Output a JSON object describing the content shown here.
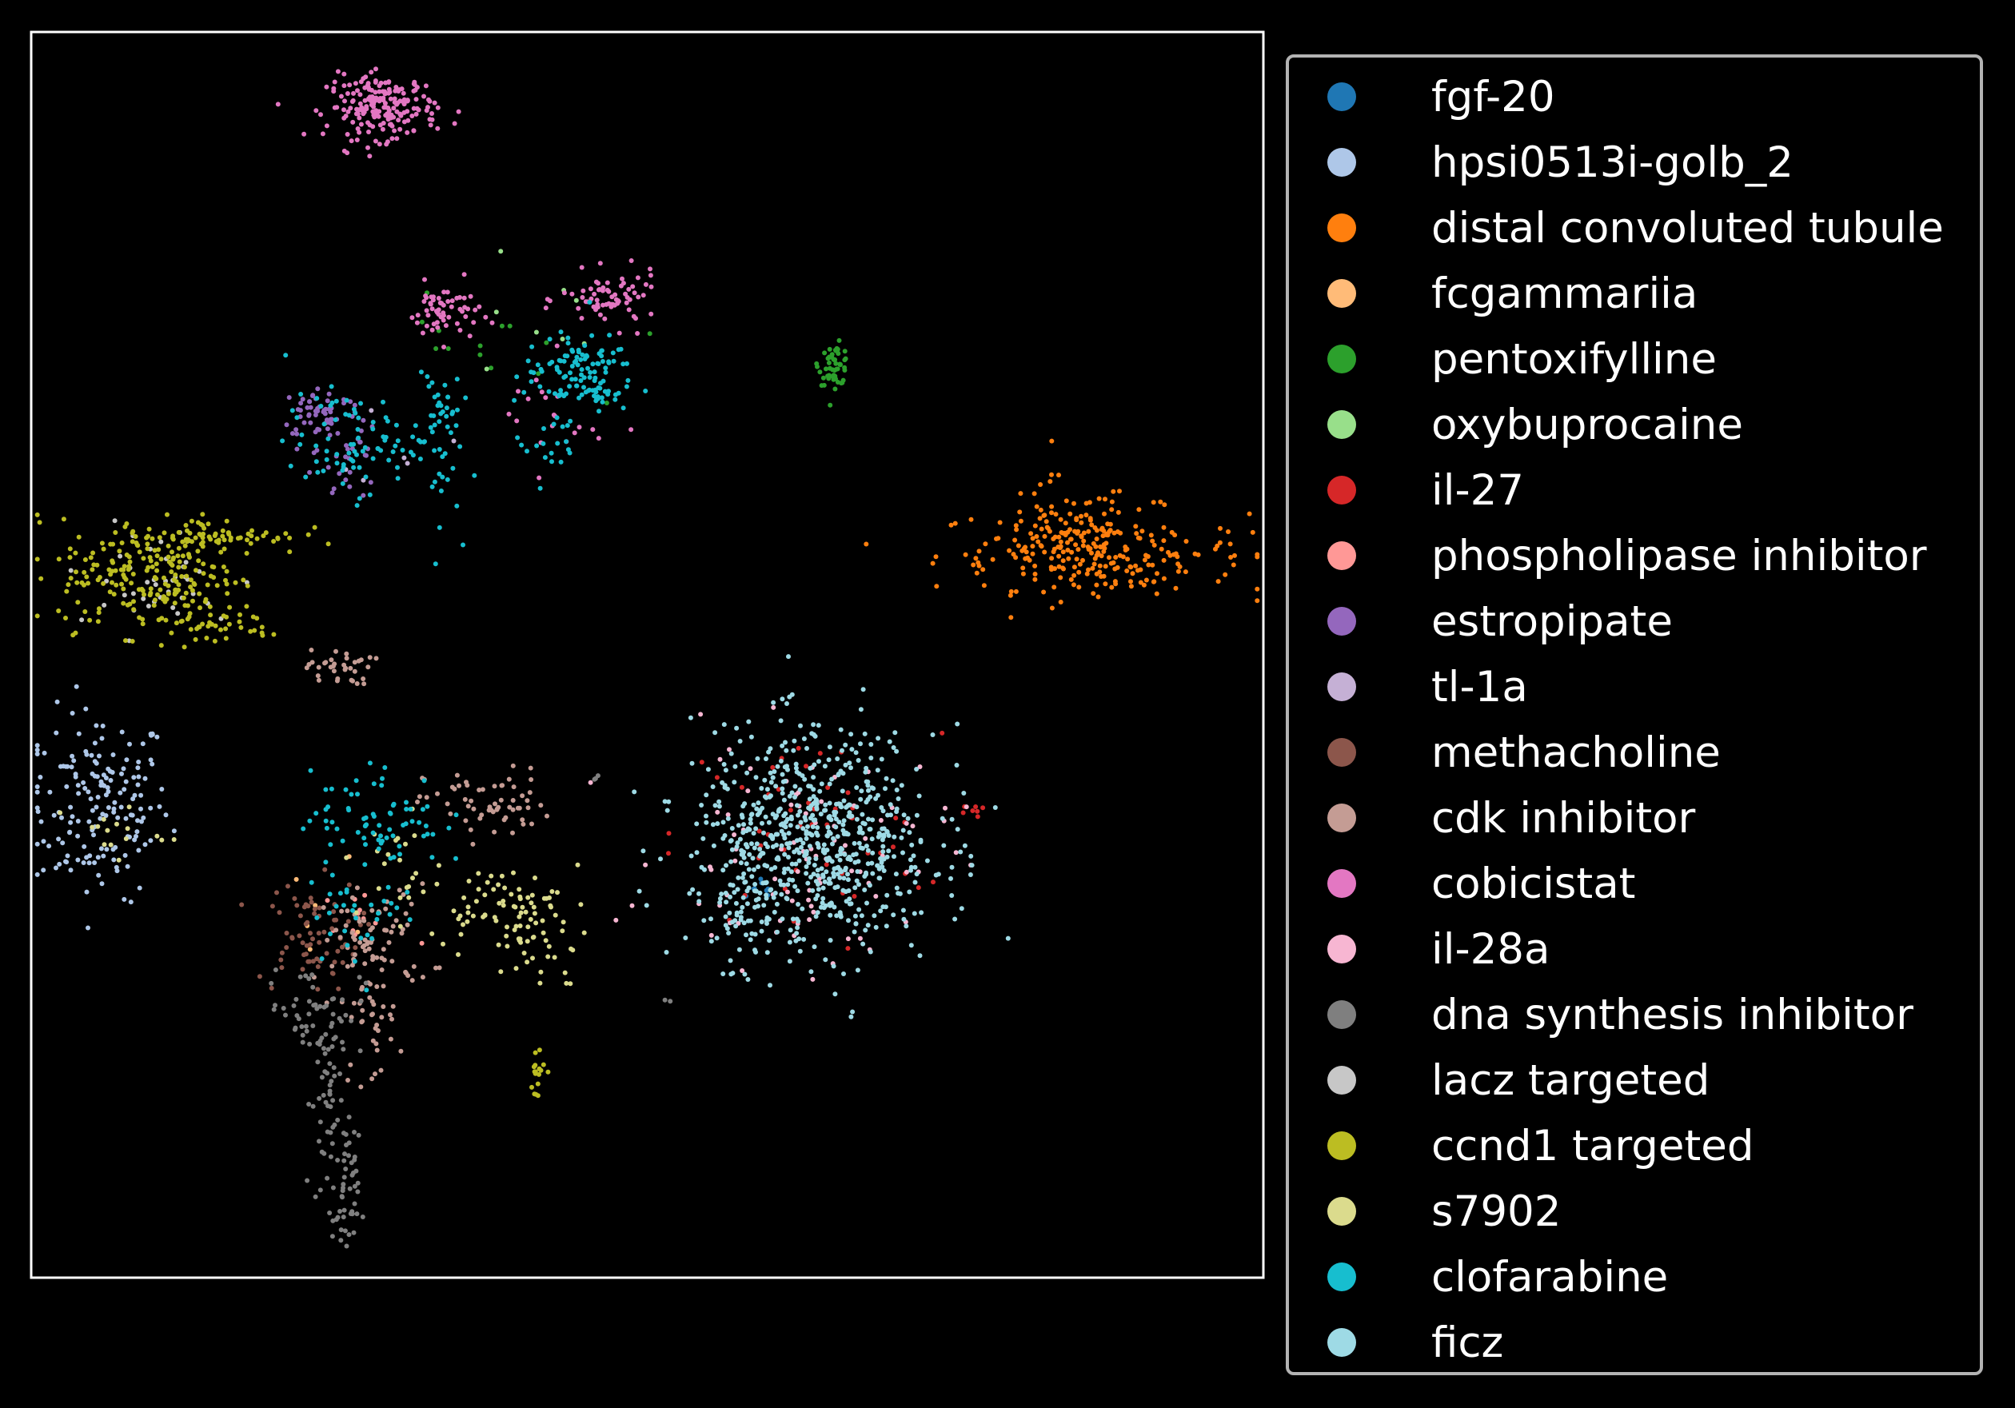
{
  "chart_data": {
    "type": "scatter",
    "title": "",
    "xlabel": "",
    "ylabel": "",
    "axes_visible": false,
    "background": "#000000",
    "frame_color": "#ffffff",
    "legend_position": "right",
    "xlim": [
      0,
      100
    ],
    "ylim": [
      0,
      100
    ],
    "series": [
      {
        "name": "fgf-20",
        "color": "#1f77b4",
        "clusters": [
          {
            "cx": 59.5,
            "cy": 31,
            "rx": 0.8,
            "ry": 0.8,
            "n": 8
          }
        ]
      },
      {
        "name": "hpsi0513i-golb_2",
        "color": "#aec7e8",
        "clusters": [
          {
            "cx": 5.5,
            "cy": 38,
            "rx": 3.2,
            "ry": 4.2,
            "n": 170
          }
        ]
      },
      {
        "name": "distal convoluted tubule",
        "color": "#ff7f0e",
        "clusters": [
          {
            "cx": 86,
            "cy": 58.5,
            "rx": 7,
            "ry": 1.8,
            "n": 160
          },
          {
            "cx": 84,
            "cy": 59.5,
            "rx": 3,
            "ry": 2.6,
            "n": 90
          },
          {
            "cx": 90,
            "cy": 56.5,
            "rx": 3.5,
            "ry": 1.2,
            "n": 40
          }
        ]
      },
      {
        "name": "fcgammariia",
        "color": "#ffbb78",
        "clusters": [
          {
            "cx": 24,
            "cy": 29.5,
            "rx": 1.8,
            "ry": 2.5,
            "n": 6
          }
        ]
      },
      {
        "name": "pentoxifylline",
        "color": "#2ca02c",
        "clusters": [
          {
            "cx": 65.2,
            "cy": 73.3,
            "rx": 0.7,
            "ry": 0.9,
            "n": 55
          },
          {
            "cx": 36,
            "cy": 74,
            "rx": 5,
            "ry": 2.5,
            "n": 14
          }
        ]
      },
      {
        "name": "oxybuprocaine",
        "color": "#98df8a",
        "clusters": [
          {
            "cx": 40,
            "cy": 77,
            "rx": 4,
            "ry": 4,
            "n": 8
          }
        ]
      },
      {
        "name": "il-27",
        "color": "#d62728",
        "clusters": [
          {
            "cx": 63,
            "cy": 35.5,
            "rx": 6,
            "ry": 4.5,
            "n": 50
          },
          {
            "cx": 76.5,
            "cy": 37.5,
            "rx": 0.5,
            "ry": 0.3,
            "n": 6
          }
        ]
      },
      {
        "name": "phospholipase inhibitor",
        "color": "#ff9896",
        "clusters": [
          {
            "cx": 27,
            "cy": 28,
            "rx": 3,
            "ry": 3,
            "n": 12
          }
        ]
      },
      {
        "name": "estropipate",
        "color": "#9467bd",
        "clusters": [
          {
            "cx": 23.5,
            "cy": 69.5,
            "rx": 1.8,
            "ry": 1.2,
            "n": 55
          },
          {
            "cx": 25.5,
            "cy": 66,
            "rx": 1.5,
            "ry": 2.5,
            "n": 30
          }
        ]
      },
      {
        "name": "tl-1a",
        "color": "#c5b0d5",
        "clusters": [
          {
            "cx": 30,
            "cy": 67,
            "rx": 2,
            "ry": 2,
            "n": 6
          }
        ]
      },
      {
        "name": "methacholine",
        "color": "#8c564b",
        "clusters": [
          {
            "cx": 22.5,
            "cy": 27.5,
            "rx": 2.3,
            "ry": 2.5,
            "n": 70
          }
        ]
      },
      {
        "name": "cdk inhibitor",
        "color": "#c49c94",
        "clusters": [
          {
            "cx": 25,
            "cy": 49,
            "rx": 1.5,
            "ry": 0.8,
            "n": 35
          },
          {
            "cx": 37,
            "cy": 38,
            "rx": 2.8,
            "ry": 1.6,
            "n": 60
          },
          {
            "cx": 28,
            "cy": 27,
            "rx": 2.5,
            "ry": 2.5,
            "n": 70
          },
          {
            "cx": 27.5,
            "cy": 21,
            "rx": 1.3,
            "ry": 3,
            "n": 40
          }
        ]
      },
      {
        "name": "cobicistat",
        "color": "#e377c2",
        "clusters": [
          {
            "cx": 28.5,
            "cy": 94,
            "rx": 2.5,
            "ry": 1.4,
            "n": 200
          },
          {
            "cx": 33.5,
            "cy": 77.5,
            "rx": 1.6,
            "ry": 1.3,
            "n": 60
          },
          {
            "cx": 47,
            "cy": 78.5,
            "rx": 2.2,
            "ry": 1.2,
            "n": 70
          },
          {
            "cx": 42,
            "cy": 69,
            "rx": 2.5,
            "ry": 2.5,
            "n": 20
          }
        ]
      },
      {
        "name": "il-28a",
        "color": "#f7b6d2",
        "clusters": [
          {
            "cx": 63,
            "cy": 34,
            "rx": 6.5,
            "ry": 5,
            "n": 90
          }
        ]
      },
      {
        "name": "dna synthesis inhibitor",
        "color": "#7f7f7f",
        "clusters": [
          {
            "cx": 23,
            "cy": 21.5,
            "rx": 2.2,
            "ry": 2,
            "n": 50
          },
          {
            "cx": 24,
            "cy": 14,
            "rx": 0.7,
            "ry": 4.5,
            "n": 50
          },
          {
            "cx": 25.5,
            "cy": 6,
            "rx": 0.6,
            "ry": 3,
            "n": 45
          },
          {
            "cx": 45.9,
            "cy": 40,
            "rx": 0.2,
            "ry": 0.2,
            "n": 3
          },
          {
            "cx": 51.9,
            "cy": 22,
            "rx": 0.2,
            "ry": 0.2,
            "n": 2
          }
        ]
      },
      {
        "name": "lacz targeted",
        "color": "#c7c7c7",
        "clusters": [
          {
            "cx": 10,
            "cy": 56,
            "rx": 4,
            "ry": 2.5,
            "n": 40
          }
        ]
      },
      {
        "name": "ccnd1 targeted",
        "color": "#bcbd22",
        "clusters": [
          {
            "cx": 9.5,
            "cy": 56.5,
            "rx": 4,
            "ry": 2.5,
            "n": 200
          },
          {
            "cx": 15.5,
            "cy": 59.5,
            "rx": 3.5,
            "ry": 0.8,
            "n": 70
          },
          {
            "cx": 14.5,
            "cy": 52.5,
            "rx": 3,
            "ry": 1,
            "n": 40
          },
          {
            "cx": 41,
            "cy": 16.5,
            "rx": 0.5,
            "ry": 1.3,
            "n": 18
          }
        ]
      },
      {
        "name": "s7902",
        "color": "#dbdb8d",
        "clusters": [
          {
            "cx": 37.5,
            "cy": 30,
            "rx": 3,
            "ry": 1.5,
            "n": 60
          },
          {
            "cx": 41.5,
            "cy": 27,
            "rx": 2,
            "ry": 2.5,
            "n": 40
          },
          {
            "cx": 30,
            "cy": 33,
            "rx": 2,
            "ry": 2.5,
            "n": 20
          },
          {
            "cx": 6,
            "cy": 36,
            "rx": 2.5,
            "ry": 1.5,
            "n": 15
          }
        ]
      },
      {
        "name": "clofarabine",
        "color": "#17becf",
        "clusters": [
          {
            "cx": 26,
            "cy": 67,
            "rx": 3,
            "ry": 2.2,
            "n": 80
          },
          {
            "cx": 33,
            "cy": 68,
            "rx": 1,
            "ry": 4,
            "n": 50
          },
          {
            "cx": 44.5,
            "cy": 72.5,
            "rx": 2.5,
            "ry": 1.8,
            "n": 120
          },
          {
            "cx": 42,
            "cy": 67,
            "rx": 1.5,
            "ry": 1.8,
            "n": 20
          },
          {
            "cx": 28,
            "cy": 37,
            "rx": 3,
            "ry": 2.2,
            "n": 70
          },
          {
            "cx": 27,
            "cy": 30,
            "rx": 2.5,
            "ry": 2.5,
            "n": 35
          }
        ]
      },
      {
        "name": "ficz",
        "color": "#9edae5",
        "clusters": [
          {
            "cx": 63.5,
            "cy": 35,
            "rx": 5.5,
            "ry": 5,
            "n": 700
          },
          {
            "cx": 58.5,
            "cy": 30,
            "rx": 1.5,
            "ry": 2.8,
            "n": 40
          }
        ]
      }
    ]
  }
}
